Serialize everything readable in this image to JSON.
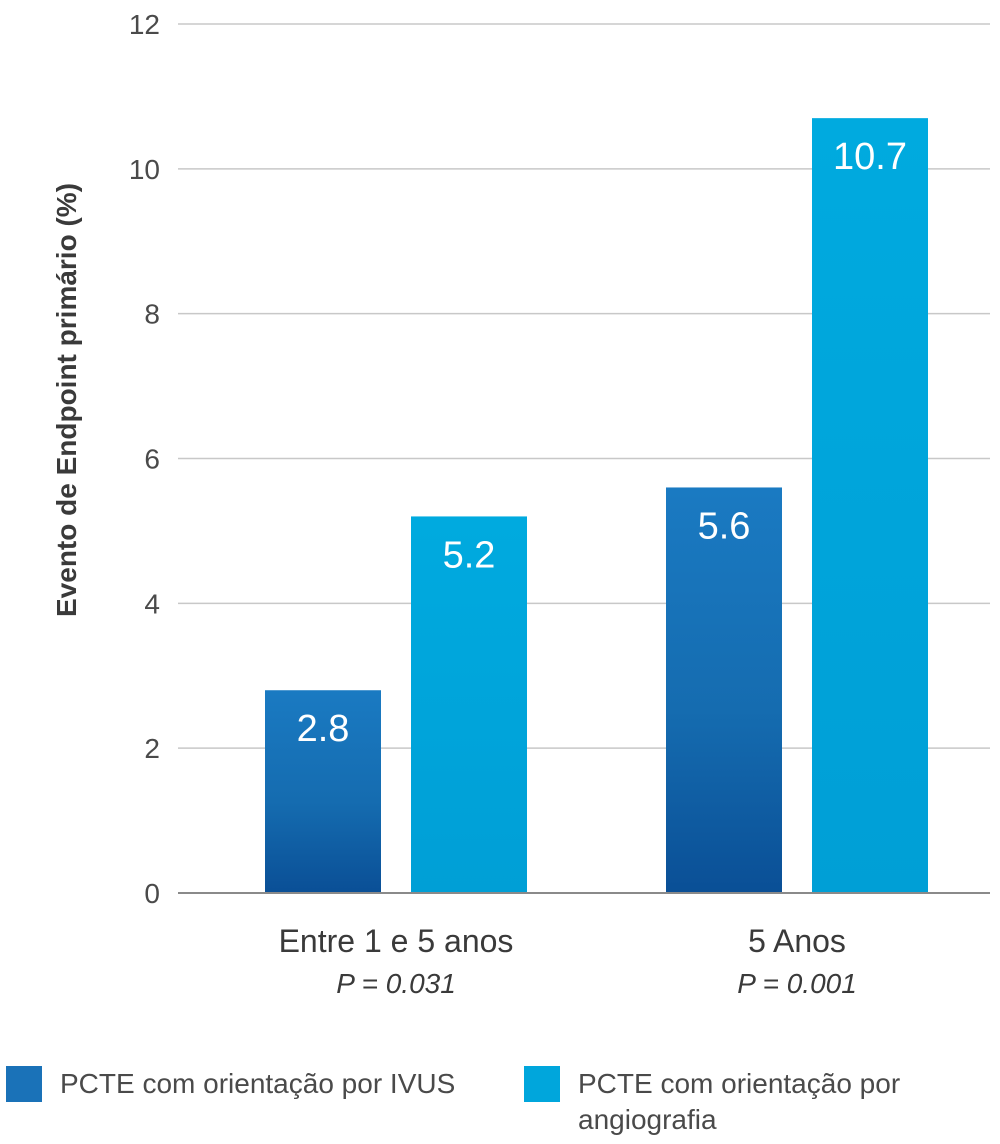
{
  "chart_data": {
    "type": "bar",
    "title": "",
    "xlabel": "",
    "ylabel": "Evento de Endpoint primário (%)",
    "ylim": [
      0,
      12
    ],
    "yticks": [
      0,
      2,
      4,
      6,
      8,
      10,
      12
    ],
    "grid": true,
    "legend_position": "bottom",
    "categories": [
      "Entre 1 e 5 anos",
      "5 Anos"
    ],
    "category_notes": [
      "P = 0.031",
      "P = 0.001"
    ],
    "series": [
      {
        "name": "PCTE com orientação por IVUS",
        "values": [
          2.8,
          5.6
        ],
        "value_labels": [
          "2.8",
          "5.6"
        ],
        "color": "#1a72b8"
      },
      {
        "name": "PCTE com orientação por angiografia",
        "values": [
          5.2,
          10.7
        ],
        "value_labels": [
          "5.2",
          "10.7"
        ],
        "color": "#00a6dc"
      }
    ]
  }
}
